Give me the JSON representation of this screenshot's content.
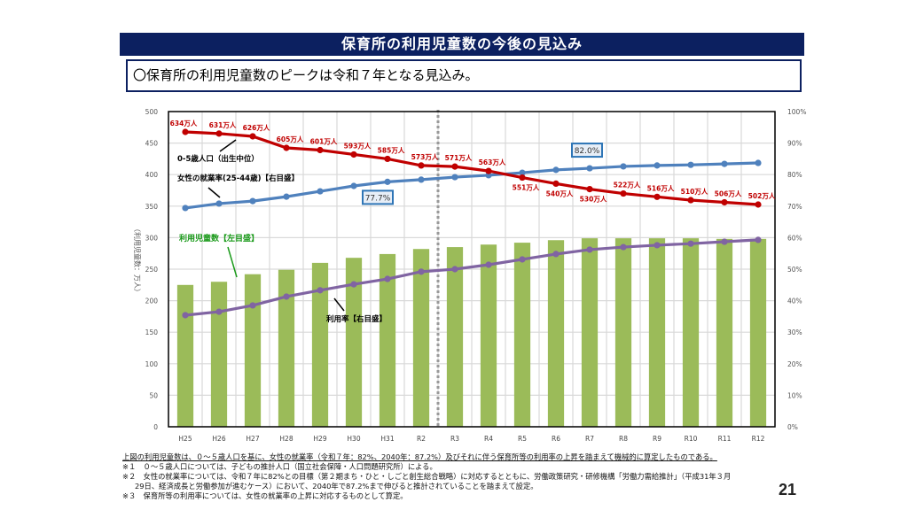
{
  "header": {
    "title": "保育所の利用児童数の今後の見込み",
    "summary": "〇保育所の利用児童数のピークは令和７年となる見込み。"
  },
  "chart_data": {
    "type": "bar",
    "title": "",
    "categories": [
      "H25",
      "H26",
      "H27",
      "H28",
      "H29",
      "H30",
      "H31",
      "R2",
      "R3",
      "R4",
      "R5",
      "R6",
      "R7",
      "R8",
      "R9",
      "R10",
      "R11",
      "R12"
    ],
    "ylabel": "（利用児童数：万人）",
    "ylim": [
      0,
      500
    ],
    "yticks": [
      "0",
      "50",
      "100",
      "150",
      "200",
      "250",
      "300",
      "350",
      "400",
      "450",
      "500"
    ],
    "y2lim": [
      0,
      100
    ],
    "y2ticks": [
      "0%",
      "10%",
      "20%",
      "30%",
      "40%",
      "50%",
      "60%",
      "70%",
      "80%",
      "90%",
      "100%"
    ],
    "grid": true,
    "divider_after_category": "R2",
    "series": [
      {
        "name": "利用児童数【左目盛】",
        "type": "bar",
        "axis": "left",
        "color": "#9bbb59",
        "values": [
          225,
          230,
          242,
          249,
          260,
          268,
          274,
          282,
          285,
          289,
          292,
          296,
          299,
          299,
          299,
          299,
          298,
          298
        ]
      },
      {
        "name": "利用率【右目盛】",
        "type": "line",
        "axis": "right",
        "color": "#8064a2",
        "values": [
          35.4,
          36.5,
          38.5,
          41.3,
          43.3,
          45.2,
          46.9,
          49.2,
          50.0,
          51.4,
          53.1,
          54.8,
          56.2,
          57.0,
          57.6,
          58.1,
          58.7,
          59.3
        ]
      },
      {
        "name": "女性の就業率(25-44歳)【右目盛】",
        "type": "line",
        "axis": "right",
        "color": "#4f81bd",
        "values": [
          69.4,
          70.8,
          71.6,
          73.0,
          74.7,
          76.4,
          77.7,
          78.4,
          79.2,
          79.8,
          80.6,
          81.5,
          82.0,
          82.6,
          82.9,
          83.1,
          83.4,
          83.7
        ],
        "callouts": [
          {
            "category": "H31",
            "label": "77.7%"
          },
          {
            "category": "R7",
            "label": "82.0%"
          }
        ]
      },
      {
        "name": "0-5歳人口（出生中位）",
        "type": "line",
        "axis": "hidden",
        "color": "#c00000",
        "values": [
          634,
          631,
          626,
          605,
          601,
          593,
          585,
          573,
          571,
          563,
          551,
          540,
          530,
          522,
          516,
          510,
          506,
          502
        ],
        "data_labels": [
          "634万人",
          "631万人",
          "626万人",
          "605万人",
          "601万人",
          "593万人",
          "585万人",
          "573万人",
          "571万人",
          "563万人",
          "551万人",
          "540万人",
          "530万人",
          "522万人",
          "516万人",
          "510万人",
          "506万人",
          "502万人"
        ]
      }
    ],
    "annotations": [
      {
        "text": "0-5歳人口（出生中位）",
        "color": "#000000"
      },
      {
        "text": "女性の就業率(25-44歳)【右目盛】",
        "color": "#000000"
      },
      {
        "text": "利用児童数【左目盛】",
        "color": "#1a9a1a"
      },
      {
        "text": "利用率【右目盛】",
        "color": "#000000"
      }
    ]
  },
  "notes": {
    "lead": "上図の利用児童数は、０～５歳人口を基に、女性の就業率（令和７年：82%、2040年：87.2%）及びそれに伴う保育所等の利用率の上昇を踏まえて機械的に算定したものである。",
    "items": [
      "※１　０～５歳人口については、子どもの推計人口（国立社会保障・人口問題研究所）による。",
      "※２　女性の就業率については、令和７年に82%との目標（第２期まち・ひと・しごと創生総合戦略）に対応するとともに、労働政策研究・研修機構「労働力需給推計」（平成31年３月",
      "29日、経済成長と労働参加が進むケース）において、2040年で87.2%まで伸びると推計されていることを踏まえて設定。",
      "※３　保育所等の利用率については、女性の就業率の上昇に対応するものとして算定。"
    ]
  },
  "page_number": "21"
}
